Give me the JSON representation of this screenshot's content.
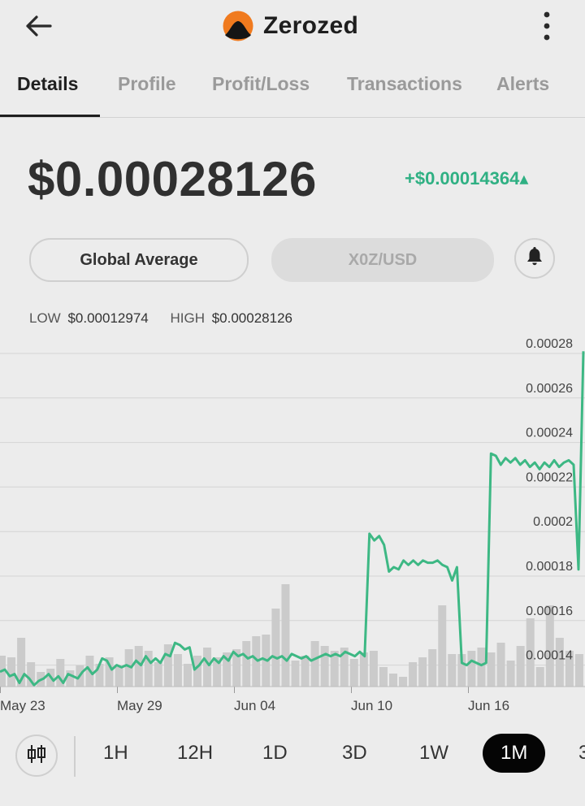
{
  "header": {
    "title": "Zerozed"
  },
  "tabs": [
    {
      "label": "Details",
      "active": true
    },
    {
      "label": "Profile"
    },
    {
      "label": "Profit/Loss"
    },
    {
      "label": "Transactions"
    },
    {
      "label": "Alerts"
    }
  ],
  "price": {
    "current": "$0.00028126",
    "change": "+$0.00014364▴"
  },
  "selectors": {
    "average": "Global Average",
    "pair": "X0Z/USD"
  },
  "stats": {
    "low_label": "LOW",
    "low_value": "$0.00012974",
    "high_label": "HIGH",
    "high_value": "$0.00028126"
  },
  "ranges": [
    "1H",
    "12H",
    "1D",
    "3D",
    "1W",
    "1M",
    "3"
  ],
  "active_range": "1M",
  "colors": {
    "line": "#3db884",
    "positive": "#2fb083",
    "volume": "#cbcbcb",
    "grid": "#d4d4d4"
  },
  "chart_data": {
    "type": "line",
    "y_tick_labels": [
      "0.00028",
      "0.00026",
      "0.00024",
      "0.00022",
      "0.0002",
      "0.00018",
      "0.00016",
      "0.00014"
    ],
    "x_tick_labels": [
      "May 23",
      "May 29",
      "Jun 04",
      "Jun 10",
      "Jun 16"
    ],
    "ylim": [
      0.0001297,
      0.00028
    ],
    "series": [
      {
        "values": [
          0.000137,
          0.000138,
          0.000135,
          0.000136,
          0.000132,
          0.000136,
          0.000134,
          0.000131,
          0.000133,
          0.000134,
          0.000136,
          0.000133,
          0.000135,
          0.000132,
          0.000136,
          0.000135,
          0.000134,
          0.000137,
          0.000139,
          0.000136,
          0.000138,
          0.000143,
          0.000142,
          0.000138,
          0.00014,
          0.000139,
          0.00014,
          0.000139,
          0.000142,
          0.00014,
          0.000144,
          0.000141,
          0.000143,
          0.000141,
          0.000145,
          0.000144,
          0.00015,
          0.000149,
          0.000147,
          0.000148,
          0.000138,
          0.00014,
          0.000143,
          0.00014,
          0.000143,
          0.000141,
          0.000144,
          0.000142,
          0.000146,
          0.000144,
          0.000145,
          0.000143,
          0.000144,
          0.000142,
          0.000143,
          0.000142,
          0.000144,
          0.000143,
          0.000144,
          0.000142,
          0.000145,
          0.000144,
          0.000143,
          0.000144,
          0.000142,
          0.000143,
          0.000144,
          0.000145,
          0.000144,
          0.000145,
          0.000144,
          0.000146,
          0.000145,
          0.000144,
          0.000146,
          0.000144,
          0.000199,
          0.000196,
          0.000198,
          0.000194,
          0.000182,
          0.000184,
          0.000183,
          0.000187,
          0.000185,
          0.000187,
          0.000185,
          0.000187,
          0.000186,
          0.000186,
          0.000187,
          0.000185,
          0.000184,
          0.000178,
          0.000184,
          0.000141,
          0.00014,
          0.000142,
          0.000141,
          0.00014,
          0.000141,
          0.000235,
          0.000234,
          0.00023,
          0.000233,
          0.000231,
          0.000233,
          0.00023,
          0.000232,
          0.000229,
          0.000231,
          0.000228,
          0.000231,
          0.000229,
          0.000232,
          0.000229,
          0.000231,
          0.000232,
          0.00023,
          0.000183,
          0.000281
        ]
      }
    ],
    "volume": [
      38,
      36,
      60,
      30,
      18,
      22,
      34,
      20,
      26,
      38,
      28,
      36,
      24,
      46,
      50,
      44,
      30,
      52,
      40,
      28,
      38,
      48,
      36,
      42,
      46,
      56,
      62,
      64,
      96,
      126,
      32,
      38,
      56,
      50,
      44,
      48,
      34,
      42,
      44,
      24,
      16,
      12,
      30,
      36,
      46,
      100,
      40,
      40,
      44,
      48,
      42,
      54,
      32,
      50,
      84,
      24,
      100,
      60,
      44,
      40,
      22,
      24,
      38,
      22,
      48,
      36,
      32,
      36,
      60,
      36,
      38,
      22,
      28,
      58,
      70,
      40
    ]
  }
}
